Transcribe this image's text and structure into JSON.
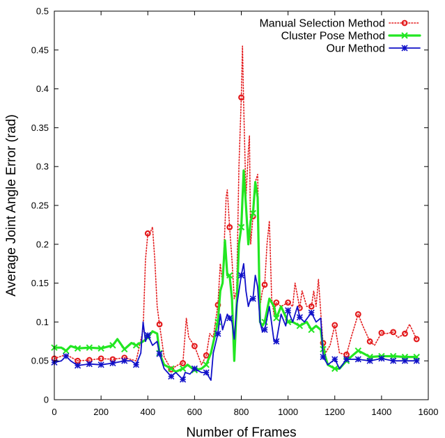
{
  "chart_data": {
    "type": "line",
    "title": "",
    "xlabel": "Number of Frames",
    "ylabel": "Average Joint Angle Error (rad)",
    "xlim": [
      0,
      1600
    ],
    "ylim": [
      0,
      0.5
    ],
    "xticks": [
      0,
      200,
      400,
      600,
      800,
      1000,
      1200,
      1400,
      1600
    ],
    "xtick_labels": [
      "0",
      "200",
      "400",
      "600",
      "800",
      "1000",
      "1200",
      "1400",
      "1600"
    ],
    "yticks": [
      0,
      0.05,
      0.1,
      0.15,
      0.2,
      0.25,
      0.3,
      0.35,
      0.4,
      0.45,
      0.5
    ],
    "ytick_labels": [
      "0",
      "0.05",
      "0.1",
      "0.15",
      "0.2",
      "0.25",
      "0.3",
      "0.35",
      "0.4",
      "0.45",
      "0.5"
    ],
    "grid": false,
    "legend_position": "top-right",
    "series": [
      {
        "name": "Manual Selection Method",
        "color": "#e31a1c",
        "style": "dotted",
        "marker": "circle",
        "points": [
          [
            0,
            0.053
          ],
          [
            50,
            0.058
          ],
          [
            100,
            0.05
          ],
          [
            150,
            0.051
          ],
          [
            200,
            0.053
          ],
          [
            250,
            0.052
          ],
          [
            300,
            0.054
          ],
          [
            350,
            0.05
          ],
          [
            380,
            0.09
          ],
          [
            390,
            0.18
          ],
          [
            400,
            0.214
          ],
          [
            410,
            0.215
          ],
          [
            420,
            0.222
          ],
          [
            430,
            0.18
          ],
          [
            440,
            0.12
          ],
          [
            450,
            0.097
          ],
          [
            470,
            0.055
          ],
          [
            500,
            0.039
          ],
          [
            530,
            0.045
          ],
          [
            550,
            0.047
          ],
          [
            565,
            0.105
          ],
          [
            575,
            0.08
          ],
          [
            600,
            0.069
          ],
          [
            630,
            0.045
          ],
          [
            650,
            0.057
          ],
          [
            665,
            0.085
          ],
          [
            680,
            0.08
          ],
          [
            700,
            0.122
          ],
          [
            710,
            0.175
          ],
          [
            720,
            0.15
          ],
          [
            735,
            0.26
          ],
          [
            740,
            0.27
          ],
          [
            750,
            0.222
          ],
          [
            760,
            0.18
          ],
          [
            770,
            0.13
          ],
          [
            780,
            0.14
          ],
          [
            790,
            0.3
          ],
          [
            800,
            0.389
          ],
          [
            805,
            0.455
          ],
          [
            810,
            0.38
          ],
          [
            820,
            0.26
          ],
          [
            830,
            0.32
          ],
          [
            835,
            0.34
          ],
          [
            840,
            0.2
          ],
          [
            850,
            0.236
          ],
          [
            860,
            0.28
          ],
          [
            870,
            0.29
          ],
          [
            880,
            0.12
          ],
          [
            890,
            0.14
          ],
          [
            900,
            0.148
          ],
          [
            910,
            0.2
          ],
          [
            920,
            0.23
          ],
          [
            930,
            0.13
          ],
          [
            940,
            0.11
          ],
          [
            950,
            0.125
          ],
          [
            970,
            0.12
          ],
          [
            1000,
            0.125
          ],
          [
            1020,
            0.12
          ],
          [
            1030,
            0.15
          ],
          [
            1050,
            0.118
          ],
          [
            1060,
            0.14
          ],
          [
            1080,
            0.12
          ],
          [
            1100,
            0.12
          ],
          [
            1110,
            0.14
          ],
          [
            1120,
            0.12
          ],
          [
            1130,
            0.155
          ],
          [
            1145,
            0.09
          ],
          [
            1150,
            0.073
          ],
          [
            1160,
            0.06
          ],
          [
            1180,
            0.07
          ],
          [
            1200,
            0.096
          ],
          [
            1220,
            0.06
          ],
          [
            1250,
            0.058
          ],
          [
            1270,
            0.08
          ],
          [
            1300,
            0.11
          ],
          [
            1320,
            0.095
          ],
          [
            1350,
            0.075
          ],
          [
            1370,
            0.07
          ],
          [
            1400,
            0.086
          ],
          [
            1420,
            0.085
          ],
          [
            1450,
            0.087
          ],
          [
            1470,
            0.08
          ],
          [
            1500,
            0.085
          ],
          [
            1520,
            0.097
          ],
          [
            1550,
            0.078
          ]
        ],
        "marker_x": [
          0,
          100,
          150,
          200,
          250,
          300,
          400,
          450,
          500,
          550,
          600,
          650,
          700,
          750,
          800,
          850,
          900,
          950,
          1000,
          1050,
          1100,
          1150,
          1200,
          1250,
          1300,
          1350,
          1400,
          1450,
          1500,
          1550
        ]
      },
      {
        "name": "Cluster Pose Method",
        "color": "#22e622",
        "style": "solid-thick",
        "marker": "x",
        "points": [
          [
            0,
            0.067
          ],
          [
            30,
            0.067
          ],
          [
            50,
            0.063
          ],
          [
            70,
            0.069
          ],
          [
            100,
            0.066
          ],
          [
            150,
            0.067
          ],
          [
            200,
            0.066
          ],
          [
            250,
            0.07
          ],
          [
            270,
            0.078
          ],
          [
            300,
            0.065
          ],
          [
            330,
            0.073
          ],
          [
            350,
            0.07
          ],
          [
            380,
            0.075
          ],
          [
            400,
            0.08
          ],
          [
            420,
            0.088
          ],
          [
            440,
            0.085
          ],
          [
            450,
            0.06
          ],
          [
            470,
            0.045
          ],
          [
            500,
            0.04
          ],
          [
            520,
            0.036
          ],
          [
            550,
            0.04
          ],
          [
            570,
            0.045
          ],
          [
            600,
            0.038
          ],
          [
            630,
            0.04
          ],
          [
            650,
            0.045
          ],
          [
            670,
            0.06
          ],
          [
            700,
            0.1
          ],
          [
            710,
            0.14
          ],
          [
            720,
            0.15
          ],
          [
            730,
            0.205
          ],
          [
            740,
            0.16
          ],
          [
            750,
            0.16
          ],
          [
            760,
            0.13
          ],
          [
            770,
            0.05
          ],
          [
            780,
            0.12
          ],
          [
            790,
            0.2
          ],
          [
            800,
            0.222
          ],
          [
            810,
            0.295
          ],
          [
            820,
            0.25
          ],
          [
            830,
            0.2
          ],
          [
            840,
            0.23
          ],
          [
            850,
            0.24
          ],
          [
            860,
            0.28
          ],
          [
            870,
            0.26
          ],
          [
            880,
            0.1
          ],
          [
            890,
            0.095
          ],
          [
            900,
            0.1
          ],
          [
            920,
            0.13
          ],
          [
            940,
            0.12
          ],
          [
            950,
            0.105
          ],
          [
            970,
            0.12
          ],
          [
            1000,
            0.1
          ],
          [
            1020,
            0.1
          ],
          [
            1050,
            0.095
          ],
          [
            1080,
            0.1
          ],
          [
            1100,
            0.09
          ],
          [
            1120,
            0.095
          ],
          [
            1140,
            0.09
          ],
          [
            1150,
            0.065
          ],
          [
            1170,
            0.045
          ],
          [
            1200,
            0.04
          ],
          [
            1220,
            0.04
          ],
          [
            1250,
            0.05
          ],
          [
            1280,
            0.058
          ],
          [
            1300,
            0.063
          ],
          [
            1320,
            0.06
          ],
          [
            1350,
            0.055
          ],
          [
            1400,
            0.056
          ],
          [
            1450,
            0.056
          ],
          [
            1500,
            0.055
          ],
          [
            1550,
            0.055
          ]
        ],
        "marker_x": [
          0,
          50,
          100,
          150,
          200,
          250,
          300,
          350,
          400,
          450,
          500,
          550,
          600,
          650,
          700,
          750,
          800,
          850,
          900,
          950,
          1000,
          1050,
          1100,
          1150,
          1200,
          1250,
          1300,
          1350,
          1400,
          1450,
          1500,
          1550
        ]
      },
      {
        "name": "Our Method",
        "color": "#1010c8",
        "style": "solid",
        "marker": "asterisk",
        "points": [
          [
            0,
            0.048
          ],
          [
            30,
            0.05
          ],
          [
            50,
            0.056
          ],
          [
            70,
            0.05
          ],
          [
            100,
            0.044
          ],
          [
            150,
            0.046
          ],
          [
            200,
            0.045
          ],
          [
            250,
            0.047
          ],
          [
            300,
            0.05
          ],
          [
            330,
            0.05
          ],
          [
            350,
            0.045
          ],
          [
            370,
            0.06
          ],
          [
            380,
            0.1
          ],
          [
            390,
            0.075
          ],
          [
            400,
            0.083
          ],
          [
            420,
            0.07
          ],
          [
            440,
            0.075
          ],
          [
            450,
            0.059
          ],
          [
            470,
            0.04
          ],
          [
            500,
            0.03
          ],
          [
            520,
            0.035
          ],
          [
            550,
            0.026
          ],
          [
            560,
            0.035
          ],
          [
            580,
            0.033
          ],
          [
            600,
            0.04
          ],
          [
            630,
            0.035
          ],
          [
            650,
            0.035
          ],
          [
            670,
            0.025
          ],
          [
            680,
            0.06
          ],
          [
            700,
            0.085
          ],
          [
            710,
            0.11
          ],
          [
            720,
            0.09
          ],
          [
            730,
            0.1
          ],
          [
            740,
            0.11
          ],
          [
            760,
            0.1
          ],
          [
            770,
            0.078
          ],
          [
            780,
            0.12
          ],
          [
            790,
            0.14
          ],
          [
            800,
            0.16
          ],
          [
            810,
            0.175
          ],
          [
            820,
            0.14
          ],
          [
            830,
            0.12
          ],
          [
            840,
            0.13
          ],
          [
            850,
            0.13
          ],
          [
            860,
            0.16
          ],
          [
            870,
            0.145
          ],
          [
            880,
            0.1
          ],
          [
            890,
            0.088
          ],
          [
            900,
            0.09
          ],
          [
            920,
            0.12
          ],
          [
            940,
            0.075
          ],
          [
            950,
            0.075
          ],
          [
            970,
            0.11
          ],
          [
            990,
            0.095
          ],
          [
            1000,
            0.115
          ],
          [
            1020,
            0.1
          ],
          [
            1040,
            0.12
          ],
          [
            1050,
            0.106
          ],
          [
            1070,
            0.1
          ],
          [
            1100,
            0.112
          ],
          [
            1120,
            0.1
          ],
          [
            1140,
            0.105
          ],
          [
            1150,
            0.055
          ],
          [
            1170,
            0.045
          ],
          [
            1200,
            0.052
          ],
          [
            1220,
            0.04
          ],
          [
            1250,
            0.052
          ],
          [
            1300,
            0.052
          ],
          [
            1350,
            0.05
          ],
          [
            1400,
            0.053
          ],
          [
            1450,
            0.05
          ],
          [
            1500,
            0.05
          ],
          [
            1550,
            0.05
          ]
        ],
        "marker_x": [
          0,
          50,
          100,
          150,
          200,
          250,
          300,
          350,
          400,
          450,
          500,
          550,
          600,
          650,
          700,
          750,
          800,
          850,
          900,
          950,
          1000,
          1050,
          1100,
          1150,
          1200,
          1250,
          1300,
          1350,
          1400,
          1450,
          1500,
          1550
        ]
      }
    ]
  }
}
